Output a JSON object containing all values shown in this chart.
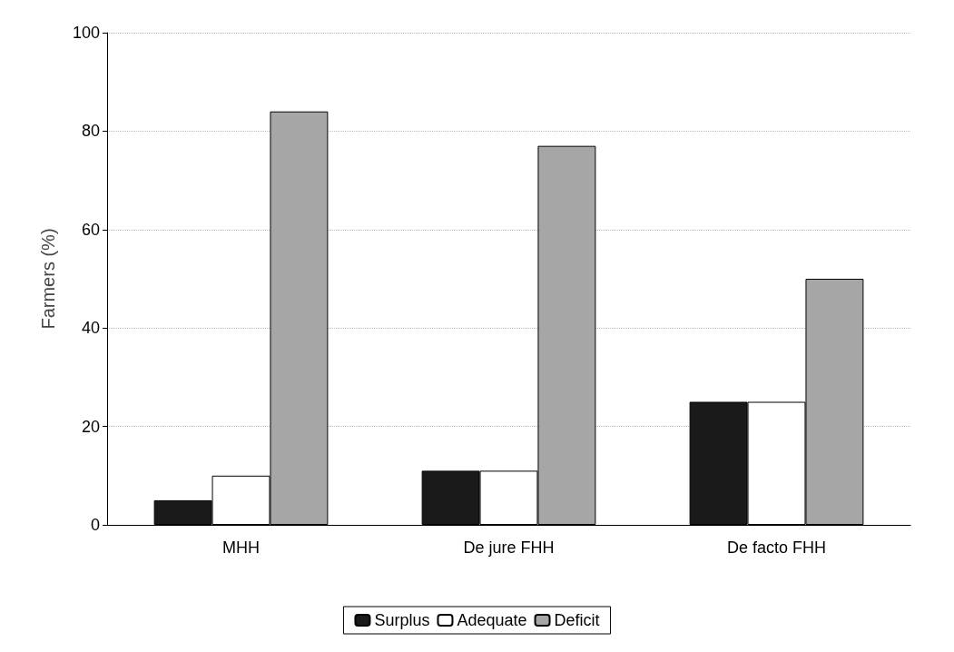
{
  "chart_data": {
    "type": "bar",
    "ylabel": "Farmers (%)",
    "categories": [
      "MHH",
      "De jure FHH",
      "De facto FHH"
    ],
    "series": [
      {
        "name": "Surplus",
        "color": "#1a1a1a",
        "values": [
          5,
          11,
          25
        ]
      },
      {
        "name": "Adequate",
        "color": "#ffffff",
        "values": [
          10,
          11,
          25
        ]
      },
      {
        "name": "Deficit",
        "color": "#a6a6a6",
        "values": [
          84,
          77,
          50
        ]
      }
    ],
    "ylim": [
      0,
      100
    ],
    "yticks": [
      0,
      20,
      40,
      60,
      80,
      100
    ],
    "grid": "y",
    "legend": "bottom"
  }
}
